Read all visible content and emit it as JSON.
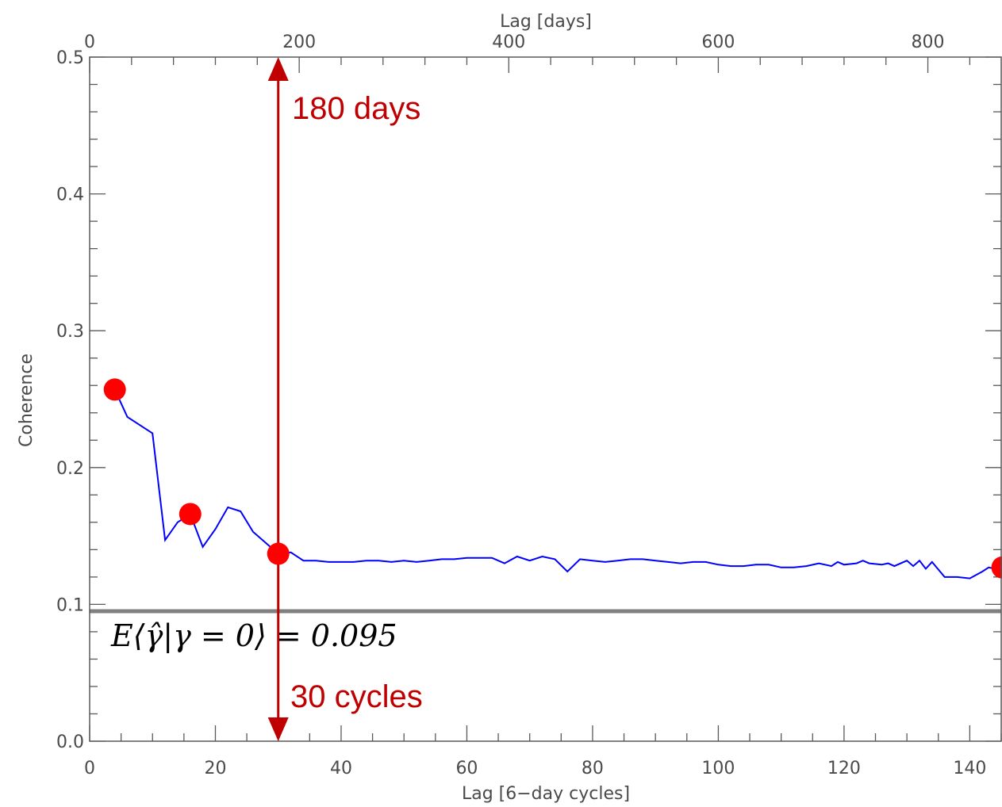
{
  "chart_data": {
    "type": "line",
    "xlabel": "Lag [6−day cycles]",
    "ylabel": "Coherence",
    "x2label": "Lag [days]",
    "xlim": [
      0,
      145
    ],
    "x2lim": [
      0,
      870
    ],
    "ylim": [
      0.0,
      0.5
    ],
    "xticks": [
      0,
      20,
      40,
      60,
      80,
      100,
      120,
      140
    ],
    "x2ticks": [
      0,
      200,
      400,
      600,
      800
    ],
    "yticks": [
      "0.0",
      "0.1",
      "0.2",
      "0.3",
      "0.4",
      "0.5"
    ],
    "grid": false,
    "series": [
      {
        "color": "#0000ff",
        "x": [
          4,
          6,
          10,
          12,
          14,
          16,
          18,
          20,
          22,
          24,
          26,
          28,
          30,
          32,
          34,
          36,
          38,
          40,
          42,
          44,
          46,
          48,
          50,
          52,
          54,
          56,
          58,
          60,
          62,
          64,
          66,
          68,
          70,
          72,
          74,
          76,
          78,
          80,
          82,
          84,
          86,
          88,
          90,
          92,
          94,
          96,
          98,
          100,
          102,
          104,
          106,
          108,
          110,
          112,
          114,
          116,
          118,
          119,
          120,
          122,
          123,
          124,
          126,
          127,
          128,
          130,
          131,
          132,
          133,
          134,
          136,
          138,
          140,
          142,
          143,
          144,
          145
        ],
        "y": [
          0.257,
          0.237,
          0.225,
          0.147,
          0.16,
          0.166,
          0.142,
          0.155,
          0.171,
          0.168,
          0.153,
          0.145,
          0.137,
          0.138,
          0.132,
          0.132,
          0.131,
          0.131,
          0.131,
          0.132,
          0.132,
          0.131,
          0.132,
          0.131,
          0.132,
          0.133,
          0.133,
          0.134,
          0.134,
          0.134,
          0.13,
          0.135,
          0.132,
          0.135,
          0.133,
          0.124,
          0.133,
          0.132,
          0.131,
          0.132,
          0.133,
          0.133,
          0.132,
          0.131,
          0.13,
          0.131,
          0.131,
          0.129,
          0.128,
          0.128,
          0.129,
          0.129,
          0.127,
          0.127,
          0.128,
          0.13,
          0.128,
          0.131,
          0.129,
          0.13,
          0.132,
          0.13,
          0.129,
          0.13,
          0.128,
          0.132,
          0.128,
          0.132,
          0.126,
          0.131,
          0.12,
          0.12,
          0.119,
          0.124,
          0.127,
          0.126,
          0.13
        ]
      }
    ],
    "markers": {
      "color": "#ff0000",
      "points": [
        [
          4,
          0.257
        ],
        [
          16,
          0.166
        ],
        [
          30,
          0.137
        ],
        [
          145.2,
          0.127
        ]
      ]
    },
    "hline": {
      "y": 0.095,
      "color": "#808080"
    },
    "vline": {
      "x": 30,
      "color": "#c00000"
    },
    "annotations": {
      "days_label": "180 days",
      "cycles_label": "30 cycles",
      "expectation_label": "E⟨γ̂|γ = 0⟩ = 0.095"
    }
  }
}
